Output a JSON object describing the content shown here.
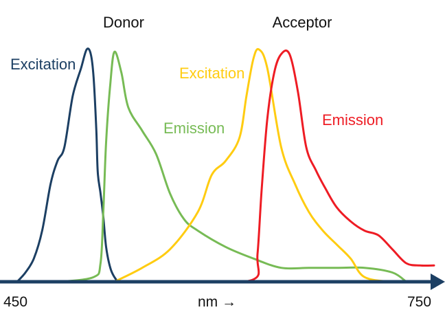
{
  "chart_data": {
    "type": "line",
    "title": "",
    "groups": [
      {
        "name": "Donor"
      },
      {
        "name": "Acceptor"
      }
    ],
    "xlabel": "nm →",
    "xlim": [
      450,
      750
    ],
    "x_ticks": [
      "450",
      "750"
    ],
    "ylabel": "",
    "ylim": [
      0,
      1
    ],
    "grid": false,
    "series": [
      {
        "name": "Excitation",
        "group": "Donor",
        "color": "#1c3f63",
        "x": [
          450,
          456,
          462,
          468,
          474,
          479,
          484,
          490,
          496,
          500,
          503,
          505,
          507,
          508,
          510,
          512,
          514,
          517,
          520,
          523,
          526,
          530
        ],
        "y": [
          0.0,
          0.04,
          0.1,
          0.22,
          0.42,
          0.52,
          0.58,
          0.8,
          0.92,
          1.0,
          0.98,
          0.88,
          0.65,
          0.47,
          0.38,
          0.28,
          0.15,
          0.06,
          0.02,
          0.0,
          0.0,
          0.0
        ]
      },
      {
        "name": "Emission",
        "group": "Donor",
        "color": "#77bb55",
        "x": [
          465,
          480,
          505,
          510,
          512,
          514,
          517,
          520,
          525,
          530,
          540,
          550,
          560,
          570,
          580,
          600,
          620,
          640,
          660,
          680,
          700,
          720,
          730
        ],
        "y": [
          0.0,
          0.0,
          0.02,
          0.08,
          0.3,
          0.6,
          0.85,
          0.99,
          0.9,
          0.75,
          0.65,
          0.55,
          0.38,
          0.27,
          0.22,
          0.15,
          0.1,
          0.06,
          0.06,
          0.06,
          0.06,
          0.04,
          0.0
        ]
      },
      {
        "name": "Excitation",
        "group": "Acceptor",
        "color": "#ffcc11",
        "x": [
          520,
          540,
          560,
          580,
          590,
          600,
          610,
          615,
          620,
          624,
          630,
          640,
          650,
          660,
          670,
          680,
          690,
          700,
          720,
          730
        ],
        "y": [
          0.0,
          0.06,
          0.14,
          0.3,
          0.46,
          0.52,
          0.62,
          0.8,
          0.96,
          1.0,
          0.92,
          0.58,
          0.42,
          0.3,
          0.22,
          0.16,
          0.1,
          0.02,
          0.0,
          0.0
        ]
      },
      {
        "name": "Emission",
        "group": "Acceptor",
        "color": "#ee1c24",
        "x": [
          520,
          580,
          620,
          623,
          626,
          630,
          635,
          640,
          646,
          652,
          658,
          665,
          672,
          680,
          690,
          700,
          710,
          720,
          730,
          740,
          750
        ],
        "y": [
          0.0,
          0.0,
          0.01,
          0.12,
          0.4,
          0.7,
          0.9,
          0.98,
          0.98,
          0.82,
          0.58,
          0.48,
          0.4,
          0.32,
          0.26,
          0.22,
          0.2,
          0.14,
          0.08,
          0.07,
          0.07
        ]
      }
    ],
    "colors": {
      "axis": "#1c3f63",
      "text": "#111111"
    }
  }
}
